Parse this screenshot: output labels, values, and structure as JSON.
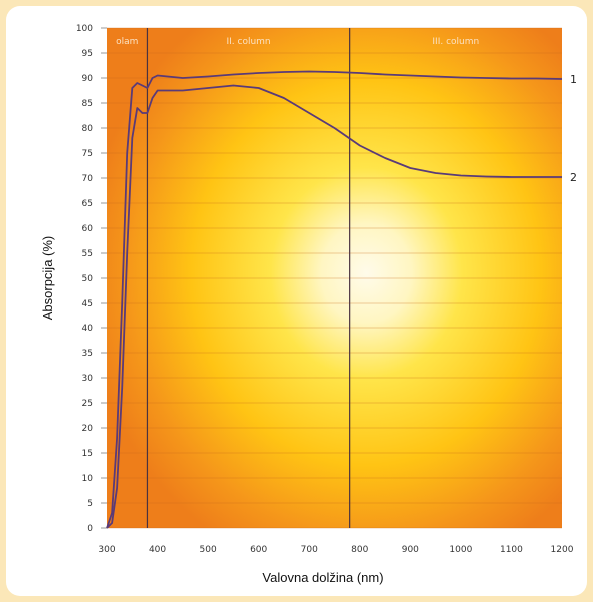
{
  "chart_data": {
    "type": "line",
    "title": "",
    "xlabel": "Valovna dolžina (nm)",
    "ylabel": "Absorpcija (%)",
    "xlim": [
      300,
      1200
    ],
    "ylim": [
      0,
      100
    ],
    "x_ticks": [
      300,
      400,
      500,
      600,
      700,
      800,
      900,
      1000,
      1100,
      1200
    ],
    "x_tick_labels": [
      "300",
      "400",
      "500",
      "600",
      "700",
      "800",
      "900",
      "1000",
      "1100",
      "1200"
    ],
    "y_ticks": [
      0,
      5,
      10,
      15,
      20,
      25,
      30,
      35,
      40,
      45,
      50,
      55,
      60,
      65,
      70,
      75,
      80,
      85,
      90,
      95,
      100
    ],
    "grid": true,
    "regions": [
      {
        "label": "olam",
        "from": 300,
        "to": 380
      },
      {
        "label": "II. column",
        "from": 380,
        "to": 780
      },
      {
        "label": "III. column",
        "from": 780,
        "to": 1200
      }
    ],
    "dividers": [
      380,
      780
    ],
    "series": [
      {
        "name": "1",
        "color": "#5a3a78",
        "x": [
          300,
          310,
          320,
          330,
          340,
          350,
          360,
          370,
          380,
          390,
          400,
          450,
          500,
          550,
          600,
          650,
          700,
          750,
          800,
          850,
          900,
          950,
          1000,
          1050,
          1100,
          1150,
          1200
        ],
        "y": [
          0,
          3,
          18,
          45,
          75,
          88,
          89,
          88.5,
          88,
          90,
          90.5,
          90,
          90.3,
          90.7,
          91,
          91.2,
          91.3,
          91.2,
          91,
          90.7,
          90.5,
          90.3,
          90.1,
          90,
          89.9,
          89.9,
          89.8
        ]
      },
      {
        "name": "2",
        "color": "#5a3a78",
        "x": [
          300,
          310,
          320,
          330,
          340,
          350,
          360,
          370,
          380,
          390,
          400,
          450,
          500,
          550,
          600,
          650,
          700,
          750,
          800,
          850,
          900,
          950,
          1000,
          1050,
          1100,
          1150,
          1200
        ],
        "y": [
          0,
          1,
          8,
          28,
          55,
          78,
          84,
          83,
          83,
          86,
          87.5,
          87.5,
          88,
          88.5,
          88,
          86,
          83,
          80,
          76.5,
          74,
          72,
          71,
          70.5,
          70.3,
          70.2,
          70.2,
          70.2
        ]
      }
    ]
  }
}
